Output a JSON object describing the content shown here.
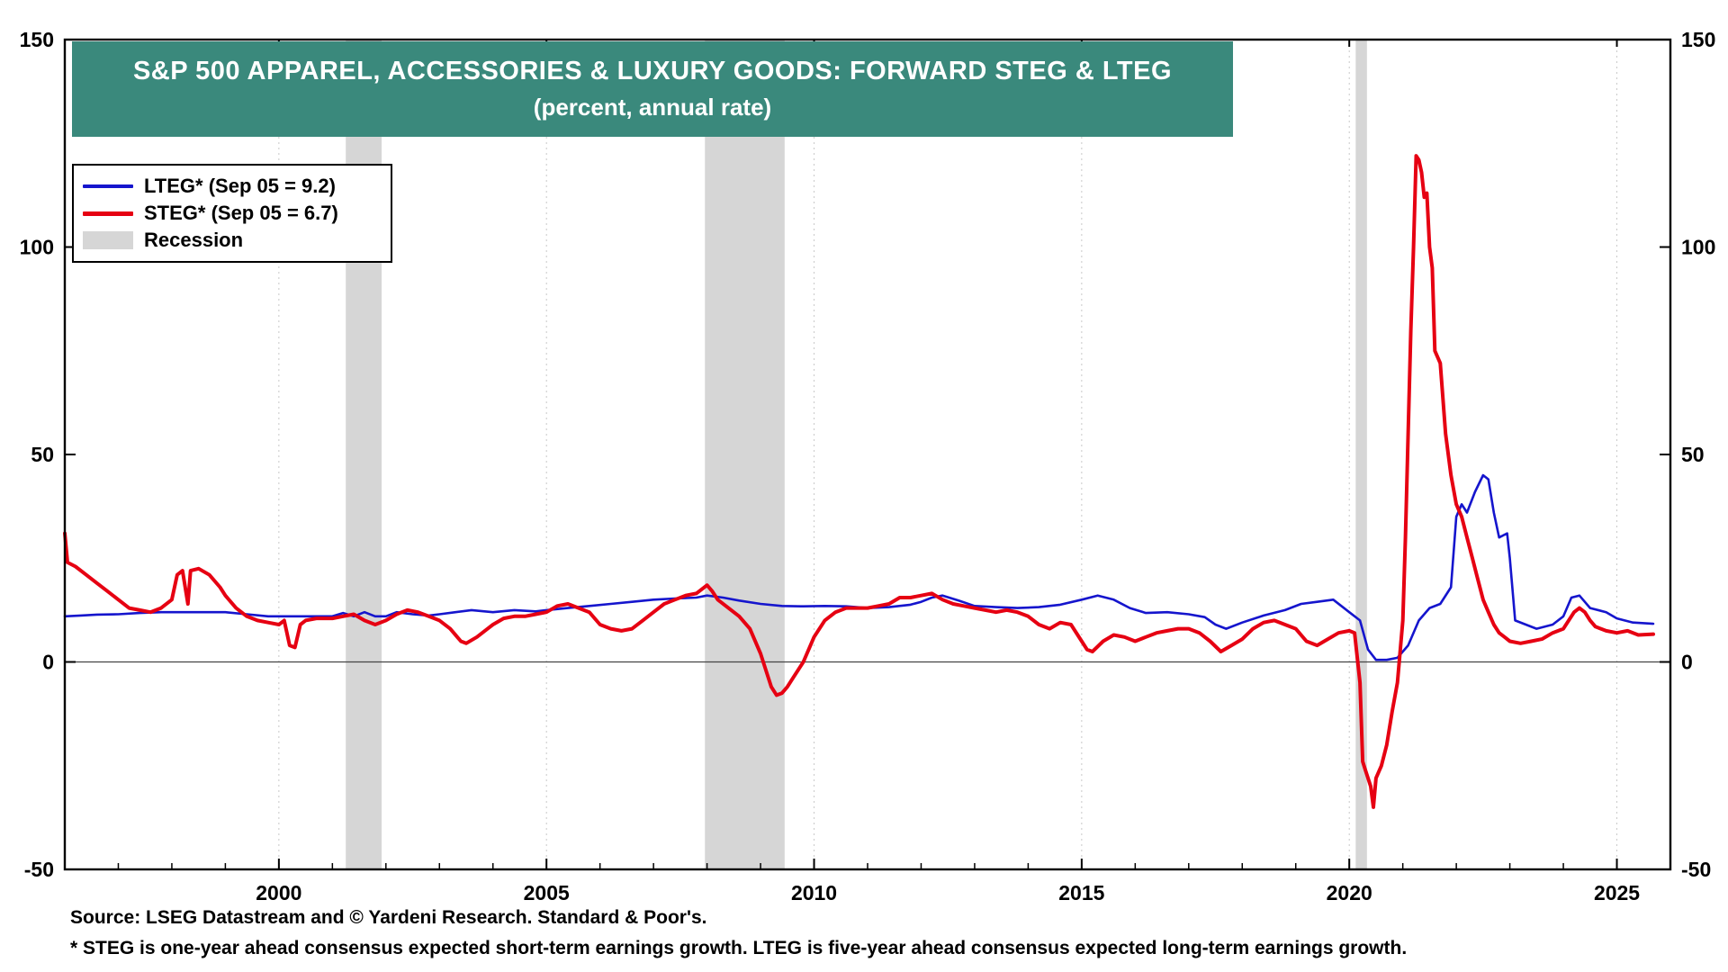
{
  "header": {
    "banner_color": "#3a897c",
    "title_line1": "S&P 500 APPAREL, ACCESSORIES & LUXURY GOODS: FORWARD STEG & LTEG",
    "title_line2": "(percent, annual rate)"
  },
  "legend": {
    "items": [
      {
        "label": "LTEG* (Sep 05 = 9.2)",
        "type": "line",
        "color": "#1515cd",
        "weight": 4
      },
      {
        "label": "STEG* (Sep 05 = 6.7)",
        "type": "line",
        "color": "#e60012",
        "weight": 5
      },
      {
        "label": "Recession",
        "type": "patch",
        "color": "#d6d6d6",
        "weight": 20
      }
    ]
  },
  "footer": {
    "source": "Source: LSEG Datastream and © Yardeni Research. Standard & Poor's.",
    "footnote": "* STEG is one-year ahead consensus expected short-term earnings growth. LTEG is five-year ahead consensus expected long-term earnings growth."
  },
  "chart_data": {
    "type": "line",
    "title": "S&P 500 Apparel, Accessories & Luxury Goods: Forward STEG & LTEG",
    "subtitle": "(percent, annual rate)",
    "xlabel": "",
    "ylabel": "percent, annual rate",
    "x_range": [
      1996,
      2026
    ],
    "y_range": [
      -50,
      150
    ],
    "x_ticks": [
      2000,
      2005,
      2010,
      2015,
      2020,
      2025
    ],
    "y_ticks": [
      -50,
      0,
      50,
      100,
      150
    ],
    "grid": "light dotted vertical at labeled years, solid line at zero",
    "legend_position": "top-left",
    "recessions": [
      [
        2001.25,
        2001.92
      ],
      [
        2007.96,
        2009.45
      ],
      [
        2020.12,
        2020.33
      ]
    ],
    "series": [
      {
        "name": "LTEG",
        "color": "#1515cd",
        "stroke_width": 2.6,
        "points": [
          [
            1996.0,
            11
          ],
          [
            1996.3,
            11.2
          ],
          [
            1996.6,
            11.4
          ],
          [
            1997.0,
            11.5
          ],
          [
            1997.4,
            11.8
          ],
          [
            1997.8,
            12
          ],
          [
            1998.2,
            12
          ],
          [
            1998.6,
            12
          ],
          [
            1999.0,
            12
          ],
          [
            1999.4,
            11.5
          ],
          [
            1999.8,
            11
          ],
          [
            2000.2,
            11
          ],
          [
            2000.6,
            11
          ],
          [
            2001.0,
            11
          ],
          [
            2001.2,
            11.8
          ],
          [
            2001.4,
            11
          ],
          [
            2001.6,
            12
          ],
          [
            2001.8,
            11
          ],
          [
            2002.0,
            11
          ],
          [
            2002.2,
            12
          ],
          [
            2002.5,
            11.5
          ],
          [
            2002.8,
            11.2
          ],
          [
            2003.0,
            11.5
          ],
          [
            2003.3,
            12
          ],
          [
            2003.6,
            12.5
          ],
          [
            2004.0,
            12
          ],
          [
            2004.4,
            12.5
          ],
          [
            2004.8,
            12.2
          ],
          [
            2005.0,
            12.5
          ],
          [
            2005.4,
            13
          ],
          [
            2005.8,
            13.5
          ],
          [
            2006.2,
            14
          ],
          [
            2006.6,
            14.5
          ],
          [
            2007.0,
            15
          ],
          [
            2007.4,
            15.3
          ],
          [
            2007.8,
            15.5
          ],
          [
            2008.0,
            16
          ],
          [
            2008.3,
            15.5
          ],
          [
            2008.6,
            14.8
          ],
          [
            2009.0,
            14
          ],
          [
            2009.4,
            13.5
          ],
          [
            2009.8,
            13.4
          ],
          [
            2010.2,
            13.5
          ],
          [
            2010.6,
            13.4
          ],
          [
            2011.0,
            13
          ],
          [
            2011.4,
            13.2
          ],
          [
            2011.8,
            13.8
          ],
          [
            2012.0,
            14.5
          ],
          [
            2012.2,
            15.5
          ],
          [
            2012.4,
            16
          ],
          [
            2012.7,
            14.8
          ],
          [
            2013.0,
            13.5
          ],
          [
            2013.4,
            13.2
          ],
          [
            2013.8,
            13
          ],
          [
            2014.2,
            13.2
          ],
          [
            2014.6,
            13.8
          ],
          [
            2015.0,
            15
          ],
          [
            2015.3,
            16
          ],
          [
            2015.6,
            15
          ],
          [
            2015.9,
            13
          ],
          [
            2016.2,
            11.8
          ],
          [
            2016.6,
            12
          ],
          [
            2017.0,
            11.5
          ],
          [
            2017.3,
            10.8
          ],
          [
            2017.5,
            9
          ],
          [
            2017.7,
            8
          ],
          [
            2018.0,
            9.5
          ],
          [
            2018.4,
            11.2
          ],
          [
            2018.8,
            12.5
          ],
          [
            2019.1,
            14
          ],
          [
            2019.4,
            14.5
          ],
          [
            2019.7,
            15
          ],
          [
            2020.0,
            12
          ],
          [
            2020.2,
            10
          ],
          [
            2020.35,
            3
          ],
          [
            2020.5,
            0.5
          ],
          [
            2020.7,
            0.5
          ],
          [
            2020.9,
            1
          ],
          [
            2021.1,
            4
          ],
          [
            2021.3,
            10
          ],
          [
            2021.5,
            13
          ],
          [
            2021.7,
            14
          ],
          [
            2021.9,
            18
          ],
          [
            2022.0,
            35
          ],
          [
            2022.1,
            38
          ],
          [
            2022.2,
            36
          ],
          [
            2022.35,
            41
          ],
          [
            2022.5,
            45
          ],
          [
            2022.6,
            44
          ],
          [
            2022.7,
            36
          ],
          [
            2022.8,
            30
          ],
          [
            2022.95,
            31
          ],
          [
            2023.0,
            25
          ],
          [
            2023.1,
            10
          ],
          [
            2023.3,
            9
          ],
          [
            2023.5,
            8
          ],
          [
            2023.8,
            9
          ],
          [
            2024.0,
            11
          ],
          [
            2024.15,
            15.5
          ],
          [
            2024.3,
            16
          ],
          [
            2024.5,
            13
          ],
          [
            2024.8,
            12
          ],
          [
            2025.0,
            10.5
          ],
          [
            2025.3,
            9.5
          ],
          [
            2025.68,
            9.2
          ]
        ]
      },
      {
        "name": "STEG",
        "color": "#e60012",
        "stroke_width": 4,
        "points": [
          [
            1996.0,
            31
          ],
          [
            1996.05,
            24
          ],
          [
            1996.2,
            23
          ],
          [
            1996.4,
            21
          ],
          [
            1996.6,
            19
          ],
          [
            1996.8,
            17
          ],
          [
            1997.0,
            15
          ],
          [
            1997.2,
            13
          ],
          [
            1997.4,
            12.5
          ],
          [
            1997.6,
            12
          ],
          [
            1997.8,
            13
          ],
          [
            1998.0,
            15
          ],
          [
            1998.1,
            21
          ],
          [
            1998.2,
            22
          ],
          [
            1998.3,
            14
          ],
          [
            1998.35,
            22
          ],
          [
            1998.5,
            22.5
          ],
          [
            1998.7,
            21
          ],
          [
            1998.9,
            18
          ],
          [
            1999.0,
            16
          ],
          [
            1999.2,
            13
          ],
          [
            1999.4,
            11
          ],
          [
            1999.6,
            10
          ],
          [
            1999.8,
            9.5
          ],
          [
            2000.0,
            9
          ],
          [
            2000.1,
            10
          ],
          [
            2000.2,
            4
          ],
          [
            2000.3,
            3.5
          ],
          [
            2000.4,
            9
          ],
          [
            2000.5,
            10
          ],
          [
            2000.7,
            10.5
          ],
          [
            2001.0,
            10.5
          ],
          [
            2001.2,
            11
          ],
          [
            2001.4,
            11.5
          ],
          [
            2001.6,
            10
          ],
          [
            2001.8,
            9
          ],
          [
            2002.0,
            10
          ],
          [
            2002.2,
            11.5
          ],
          [
            2002.4,
            12.5
          ],
          [
            2002.6,
            12
          ],
          [
            2002.8,
            11
          ],
          [
            2003.0,
            10
          ],
          [
            2003.2,
            8
          ],
          [
            2003.4,
            5
          ],
          [
            2003.5,
            4.5
          ],
          [
            2003.7,
            6
          ],
          [
            2003.9,
            8
          ],
          [
            2004.0,
            9
          ],
          [
            2004.2,
            10.5
          ],
          [
            2004.4,
            11
          ],
          [
            2004.6,
            11
          ],
          [
            2004.8,
            11.5
          ],
          [
            2005.0,
            12
          ],
          [
            2005.2,
            13.5
          ],
          [
            2005.4,
            14
          ],
          [
            2005.6,
            13
          ],
          [
            2005.8,
            12
          ],
          [
            2006.0,
            9
          ],
          [
            2006.2,
            8
          ],
          [
            2006.4,
            7.5
          ],
          [
            2006.6,
            8
          ],
          [
            2006.8,
            10
          ],
          [
            2007.0,
            12
          ],
          [
            2007.2,
            14
          ],
          [
            2007.4,
            15
          ],
          [
            2007.6,
            16
          ],
          [
            2007.8,
            16.5
          ],
          [
            2008.0,
            18.5
          ],
          [
            2008.1,
            17
          ],
          [
            2008.2,
            15
          ],
          [
            2008.4,
            13
          ],
          [
            2008.6,
            11
          ],
          [
            2008.8,
            8
          ],
          [
            2009.0,
            2
          ],
          [
            2009.1,
            -2
          ],
          [
            2009.2,
            -6
          ],
          [
            2009.3,
            -8
          ],
          [
            2009.4,
            -7.5
          ],
          [
            2009.5,
            -6
          ],
          [
            2009.6,
            -4
          ],
          [
            2009.8,
            0
          ],
          [
            2010.0,
            6
          ],
          [
            2010.2,
            10
          ],
          [
            2010.4,
            12
          ],
          [
            2010.6,
            13
          ],
          [
            2010.8,
            13
          ],
          [
            2011.0,
            13
          ],
          [
            2011.2,
            13.5
          ],
          [
            2011.4,
            14
          ],
          [
            2011.6,
            15.5
          ],
          [
            2011.8,
            15.5
          ],
          [
            2012.0,
            16
          ],
          [
            2012.2,
            16.5
          ],
          [
            2012.4,
            15
          ],
          [
            2012.6,
            14
          ],
          [
            2012.8,
            13.5
          ],
          [
            2013.0,
            13
          ],
          [
            2013.2,
            12.5
          ],
          [
            2013.4,
            12
          ],
          [
            2013.6,
            12.5
          ],
          [
            2013.8,
            12
          ],
          [
            2014.0,
            11
          ],
          [
            2014.2,
            9
          ],
          [
            2014.4,
            8
          ],
          [
            2014.6,
            9.5
          ],
          [
            2014.8,
            9
          ],
          [
            2015.0,
            5
          ],
          [
            2015.1,
            3
          ],
          [
            2015.2,
            2.5
          ],
          [
            2015.4,
            5
          ],
          [
            2015.6,
            6.5
          ],
          [
            2015.8,
            6
          ],
          [
            2016.0,
            5
          ],
          [
            2016.2,
            6
          ],
          [
            2016.4,
            7
          ],
          [
            2016.6,
            7.5
          ],
          [
            2016.8,
            8
          ],
          [
            2017.0,
            8
          ],
          [
            2017.2,
            7
          ],
          [
            2017.4,
            5
          ],
          [
            2017.6,
            2.5
          ],
          [
            2017.8,
            4
          ],
          [
            2018.0,
            5.5
          ],
          [
            2018.2,
            8
          ],
          [
            2018.4,
            9.5
          ],
          [
            2018.6,
            10
          ],
          [
            2018.8,
            9
          ],
          [
            2019.0,
            8
          ],
          [
            2019.2,
            5
          ],
          [
            2019.4,
            4
          ],
          [
            2019.6,
            5.5
          ],
          [
            2019.8,
            7
          ],
          [
            2020.0,
            7.5
          ],
          [
            2020.1,
            7
          ],
          [
            2020.2,
            -5
          ],
          [
            2020.25,
            -24
          ],
          [
            2020.3,
            -26
          ],
          [
            2020.4,
            -30
          ],
          [
            2020.45,
            -35
          ],
          [
            2020.5,
            -28
          ],
          [
            2020.6,
            -25
          ],
          [
            2020.7,
            -20
          ],
          [
            2020.8,
            -12
          ],
          [
            2020.9,
            -5
          ],
          [
            2021.0,
            10
          ],
          [
            2021.05,
            30
          ],
          [
            2021.1,
            55
          ],
          [
            2021.15,
            80
          ],
          [
            2021.2,
            100
          ],
          [
            2021.25,
            122
          ],
          [
            2021.3,
            121
          ],
          [
            2021.35,
            118
          ],
          [
            2021.4,
            112
          ],
          [
            2021.45,
            113
          ],
          [
            2021.5,
            100
          ],
          [
            2021.55,
            95
          ],
          [
            2021.6,
            75
          ],
          [
            2021.7,
            72
          ],
          [
            2021.8,
            55
          ],
          [
            2021.9,
            45
          ],
          [
            2022.0,
            38
          ],
          [
            2022.1,
            35
          ],
          [
            2022.2,
            30
          ],
          [
            2022.3,
            25
          ],
          [
            2022.4,
            20
          ],
          [
            2022.5,
            15
          ],
          [
            2022.6,
            12
          ],
          [
            2022.7,
            9
          ],
          [
            2022.8,
            7
          ],
          [
            2022.9,
            6
          ],
          [
            2023.0,
            5
          ],
          [
            2023.2,
            4.5
          ],
          [
            2023.4,
            5
          ],
          [
            2023.6,
            5.5
          ],
          [
            2023.8,
            7
          ],
          [
            2024.0,
            8
          ],
          [
            2024.1,
            10
          ],
          [
            2024.2,
            12
          ],
          [
            2024.3,
            13
          ],
          [
            2024.4,
            12
          ],
          [
            2024.5,
            10
          ],
          [
            2024.6,
            8.5
          ],
          [
            2024.7,
            8
          ],
          [
            2024.8,
            7.5
          ],
          [
            2025.0,
            7
          ],
          [
            2025.2,
            7.5
          ],
          [
            2025.4,
            6.5
          ],
          [
            2025.68,
            6.7
          ]
        ]
      }
    ]
  }
}
